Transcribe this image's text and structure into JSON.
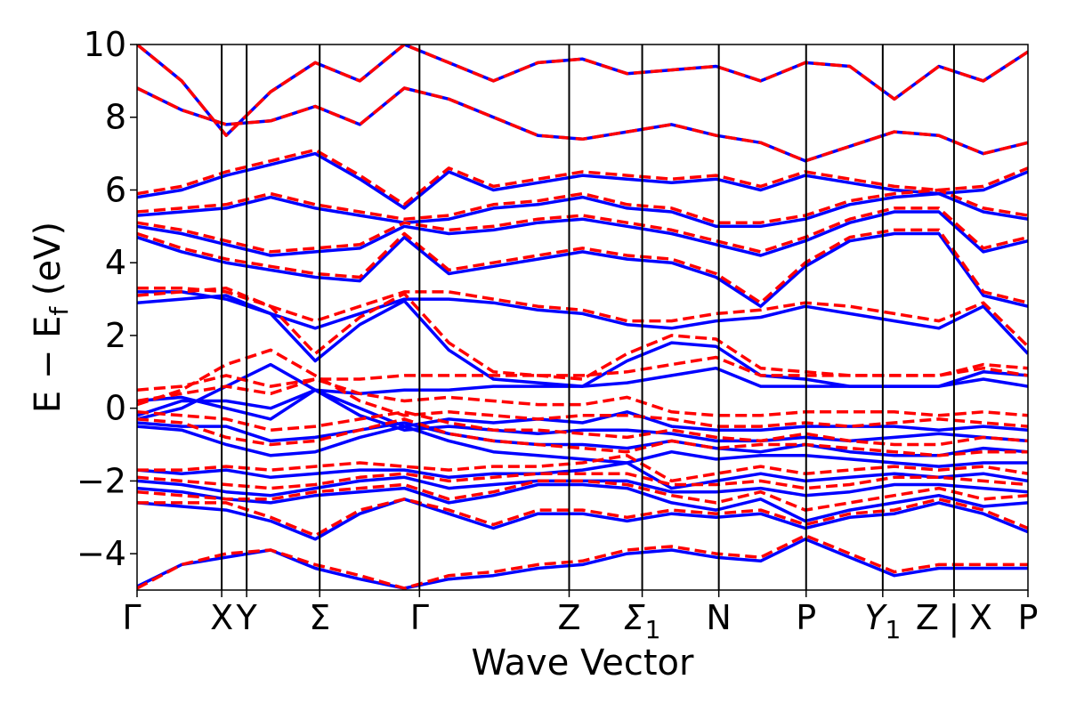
{
  "chart_data": {
    "type": "line",
    "title": "",
    "xlabel": "Wave Vector",
    "ylabel": "E − E_f (eV)",
    "ylabel_parts": {
      "main": "E − E",
      "sub": "f",
      "unit": " (eV)"
    },
    "ylim": [
      -5,
      10
    ],
    "yticks": [
      -4,
      -2,
      0,
      2,
      4,
      6,
      8,
      10
    ],
    "ytick_labels": [
      "−4",
      "−2",
      "0",
      "2",
      "4",
      "6",
      "8",
      "10"
    ],
    "grid": false,
    "legend": "none",
    "high_symmetry_points": [
      {
        "label": "Γ",
        "sub": "",
        "k": 0.0
      },
      {
        "label": "X",
        "sub": "",
        "k": 0.95
      },
      {
        "label": "Y",
        "sub": "",
        "k": 1.23
      },
      {
        "label": "Σ",
        "sub": "",
        "k": 2.05
      },
      {
        "label": "Γ",
        "sub": "",
        "k": 3.17
      },
      {
        "label": "Z",
        "sub": "",
        "k": 4.85
      },
      {
        "label": "Σ",
        "sub": "1",
        "k": 5.67
      },
      {
        "label": "N",
        "sub": "",
        "k": 6.53
      },
      {
        "label": "P",
        "sub": "",
        "k": 7.51
      },
      {
        "label": "Y",
        "sub": "1",
        "k": 8.37
      },
      {
        "label": "Z",
        "sub": "",
        "k": 9.17
      },
      {
        "label": "X",
        "sub": "",
        "k": 9.17
      },
      {
        "label": "P",
        "sub": "",
        "k": 10.0
      }
    ],
    "path_break_label": "|",
    "k_range": [
      0,
      10
    ],
    "series": [
      {
        "style": "solid",
        "color": "#0000ff",
        "bands": [
          [
            -4.9,
            -4.3,
            -4.1,
            -3.9,
            -4.4,
            -4.7,
            -4.95,
            -4.7,
            -4.6,
            -4.4,
            -4.3,
            -4.0,
            -3.9,
            -4.1,
            -4.2,
            -3.6,
            -4.1,
            -4.6,
            -4.4,
            -4.4,
            -4.4
          ],
          [
            -2.6,
            -2.7,
            -2.8,
            -3.1,
            -3.6,
            -2.9,
            -2.5,
            -2.9,
            -3.3,
            -2.9,
            -2.9,
            -3.1,
            -2.9,
            -3.0,
            -2.9,
            -3.3,
            -3.0,
            -2.9,
            -2.6,
            -2.9,
            -3.4
          ],
          [
            -2.2,
            -2.3,
            -2.5,
            -2.6,
            -2.4,
            -2.3,
            -2.2,
            -2.6,
            -2.4,
            -2.1,
            -2.1,
            -2.2,
            -2.6,
            -2.8,
            -2.5,
            -3.1,
            -2.8,
            -2.6,
            -2.4,
            -2.7,
            -2.6
          ],
          [
            -2.0,
            -2.1,
            -2.3,
            -2.4,
            -2.2,
            -2.0,
            -1.9,
            -2.2,
            -2.1,
            -2.0,
            -2.0,
            -2.0,
            -2.3,
            -2.3,
            -2.2,
            -2.4,
            -2.3,
            -2.1,
            -2.1,
            -2.2,
            -2.3
          ],
          [
            -1.7,
            -1.8,
            -1.7,
            -1.9,
            -1.8,
            -1.7,
            -1.7,
            -1.9,
            -1.8,
            -1.8,
            -1.7,
            -1.5,
            -2.2,
            -2.0,
            -1.8,
            -2.0,
            -1.9,
            -1.8,
            -1.9,
            -1.8,
            -2.0
          ],
          [
            -0.5,
            -0.6,
            -1.0,
            -1.3,
            -1.2,
            -0.8,
            -0.5,
            -0.9,
            -1.2,
            -1.3,
            -1.4,
            -1.5,
            -1.2,
            -1.4,
            -1.3,
            -1.3,
            -1.4,
            -1.5,
            -1.6,
            -1.5,
            -1.5
          ],
          [
            -0.4,
            -0.5,
            -0.5,
            -0.9,
            -0.8,
            -0.6,
            -0.4,
            -0.7,
            -0.9,
            -1.0,
            -1.0,
            -1.1,
            -0.9,
            -1.1,
            -1.2,
            -1.0,
            -1.2,
            -1.3,
            -1.3,
            -1.1,
            -1.2
          ],
          [
            -0.3,
            0.0,
            0.6,
            1.2,
            0.5,
            -0.2,
            -0.6,
            -0.5,
            -0.6,
            -0.7,
            -0.6,
            -0.6,
            -0.7,
            -0.9,
            -0.9,
            -0.8,
            -0.9,
            -0.8,
            -0.7,
            -0.8,
            -0.9
          ],
          [
            -0.2,
            0.2,
            0.2,
            0.0,
            0.5,
            0.0,
            -0.5,
            -0.3,
            -0.4,
            -0.3,
            -0.4,
            -0.1,
            -0.5,
            -0.6,
            -0.6,
            -0.5,
            -0.5,
            -0.5,
            -0.6,
            -0.5,
            -0.6
          ],
          [
            0.2,
            0.3,
            0.0,
            -0.3,
            0.5,
            0.4,
            0.5,
            0.5,
            0.6,
            0.6,
            0.6,
            0.7,
            0.9,
            1.1,
            0.6,
            0.6,
            0.6,
            0.6,
            0.6,
            0.8,
            0.6
          ],
          [
            2.9,
            3.0,
            3.1,
            2.6,
            1.3,
            2.3,
            2.95,
            1.6,
            0.8,
            0.7,
            0.6,
            1.3,
            1.8,
            1.7,
            0.9,
            0.8,
            0.6,
            0.6,
            0.6,
            1.0,
            0.9
          ],
          [
            3.2,
            3.2,
            3.0,
            2.6,
            2.2,
            2.6,
            3.0,
            3.0,
            2.9,
            2.7,
            2.6,
            2.3,
            2.2,
            2.4,
            2.5,
            2.8,
            2.6,
            2.4,
            2.2,
            2.8,
            1.5
          ],
          [
            4.7,
            4.3,
            4.0,
            3.8,
            3.6,
            3.5,
            4.7,
            3.7,
            3.9,
            4.1,
            4.3,
            4.1,
            4.0,
            3.6,
            2.8,
            3.9,
            4.6,
            4.8,
            4.8,
            3.1,
            2.8
          ],
          [
            5.0,
            4.8,
            4.5,
            4.2,
            4.3,
            4.4,
            5.0,
            4.8,
            4.9,
            5.1,
            5.2,
            5.0,
            4.8,
            4.5,
            4.2,
            4.6,
            5.1,
            5.4,
            5.4,
            4.3,
            4.6
          ],
          [
            5.3,
            5.4,
            5.5,
            5.8,
            5.5,
            5.3,
            5.1,
            5.2,
            5.5,
            5.6,
            5.8,
            5.5,
            5.4,
            5.0,
            5.0,
            5.2,
            5.6,
            5.8,
            5.9,
            5.4,
            5.2
          ],
          [
            5.8,
            6.0,
            6.4,
            6.7,
            7.0,
            6.3,
            5.5,
            6.5,
            6.0,
            6.2,
            6.4,
            6.3,
            6.2,
            6.3,
            6.0,
            6.4,
            6.2,
            6.0,
            5.9,
            6.0,
            6.5
          ],
          [
            8.8,
            8.2,
            7.8,
            7.9,
            8.3,
            7.8,
            8.8,
            8.5,
            8.0,
            7.5,
            7.4,
            7.6,
            7.8,
            7.5,
            7.3,
            6.8,
            7.2,
            7.6,
            7.5,
            7.0,
            7.3
          ],
          [
            10.0,
            9.0,
            7.5,
            8.7,
            9.5,
            9.0,
            10.0,
            9.5,
            9.0,
            9.5,
            9.6,
            9.2,
            9.3,
            9.4,
            9.0,
            9.5,
            9.4,
            8.5,
            9.4,
            9.0,
            9.8
          ]
        ]
      },
      {
        "style": "dashed",
        "color": "#ff0000",
        "bands": [
          [
            -4.95,
            -4.3,
            -4.0,
            -3.9,
            -4.3,
            -4.6,
            -4.95,
            -4.6,
            -4.5,
            -4.3,
            -4.2,
            -3.9,
            -3.8,
            -4.0,
            -4.1,
            -3.5,
            -4.0,
            -4.5,
            -4.3,
            -4.3,
            -4.3
          ],
          [
            -2.6,
            -2.6,
            -2.6,
            -3.0,
            -3.5,
            -2.8,
            -2.5,
            -2.8,
            -3.2,
            -2.8,
            -2.8,
            -3.0,
            -2.8,
            -2.9,
            -2.8,
            -3.2,
            -2.9,
            -2.8,
            -2.5,
            -2.8,
            -3.3
          ],
          [
            -2.3,
            -2.4,
            -2.5,
            -2.5,
            -2.3,
            -2.2,
            -2.1,
            -2.5,
            -2.3,
            -2.0,
            -2.0,
            -2.1,
            -2.4,
            -2.6,
            -2.3,
            -2.8,
            -2.6,
            -2.4,
            -2.2,
            -2.5,
            -2.4
          ],
          [
            -1.9,
            -2.0,
            -2.1,
            -2.2,
            -2.1,
            -1.9,
            -1.8,
            -2.0,
            -1.9,
            -1.8,
            -1.8,
            -1.8,
            -2.1,
            -2.1,
            -2.0,
            -2.2,
            -2.1,
            -1.9,
            -1.9,
            -2.0,
            -2.1
          ],
          [
            -1.7,
            -1.7,
            -1.6,
            -1.7,
            -1.6,
            -1.5,
            -1.6,
            -1.7,
            -1.6,
            -1.6,
            -1.5,
            -1.3,
            -2.0,
            -1.8,
            -1.6,
            -1.8,
            -1.7,
            -1.6,
            -1.7,
            -1.6,
            -1.8
          ],
          [
            -0.3,
            -0.4,
            -0.8,
            -1.0,
            -0.9,
            -0.6,
            -0.3,
            -0.7,
            -0.9,
            -1.0,
            -1.1,
            -1.2,
            -0.9,
            -1.1,
            -1.0,
            -1.0,
            -1.1,
            -1.2,
            -1.3,
            -1.2,
            -1.2
          ],
          [
            -0.1,
            -0.2,
            -0.3,
            -0.6,
            -0.5,
            -0.3,
            -0.1,
            -0.4,
            -0.6,
            -0.6,
            -0.7,
            -0.8,
            -0.6,
            -0.8,
            -0.9,
            -0.7,
            -0.9,
            -1.0,
            -1.0,
            -0.8,
            -0.9
          ],
          [
            0.1,
            0.5,
            1.2,
            1.6,
            0.9,
            0.2,
            -0.2,
            -0.1,
            -0.2,
            -0.3,
            -0.2,
            -0.2,
            -0.3,
            -0.5,
            -0.5,
            -0.4,
            -0.5,
            -0.4,
            -0.3,
            -0.4,
            -0.5
          ],
          [
            0.2,
            0.4,
            0.6,
            0.4,
            0.8,
            0.4,
            0.2,
            0.3,
            0.2,
            0.1,
            0.1,
            0.3,
            -0.1,
            -0.2,
            -0.2,
            -0.1,
            -0.1,
            -0.1,
            -0.2,
            -0.1,
            -0.2
          ],
          [
            0.5,
            0.6,
            0.9,
            0.6,
            0.8,
            0.8,
            0.9,
            0.9,
            0.9,
            0.9,
            0.9,
            1.0,
            1.2,
            1.4,
            0.9,
            0.9,
            0.9,
            0.9,
            0.9,
            1.1,
            0.9
          ],
          [
            3.1,
            3.2,
            3.3,
            2.8,
            1.5,
            2.5,
            3.15,
            1.8,
            1.0,
            0.9,
            0.8,
            1.5,
            2.0,
            1.9,
            1.1,
            1.0,
            0.9,
            0.9,
            0.9,
            1.2,
            1.1
          ],
          [
            3.3,
            3.3,
            3.2,
            2.8,
            2.4,
            2.8,
            3.2,
            3.2,
            3.0,
            2.8,
            2.7,
            2.4,
            2.4,
            2.6,
            2.7,
            2.9,
            2.8,
            2.6,
            2.4,
            2.9,
            1.7
          ],
          [
            4.8,
            4.4,
            4.1,
            3.9,
            3.7,
            3.6,
            4.8,
            3.8,
            4.0,
            4.2,
            4.4,
            4.2,
            4.1,
            3.7,
            2.9,
            4.0,
            4.7,
            4.9,
            4.9,
            3.2,
            2.9
          ],
          [
            5.1,
            4.9,
            4.6,
            4.3,
            4.4,
            4.5,
            5.1,
            4.9,
            5.0,
            5.2,
            5.3,
            5.1,
            4.9,
            4.6,
            4.3,
            4.7,
            5.2,
            5.5,
            5.5,
            4.4,
            4.7
          ],
          [
            5.4,
            5.5,
            5.6,
            5.9,
            5.6,
            5.4,
            5.2,
            5.3,
            5.6,
            5.7,
            5.9,
            5.6,
            5.5,
            5.1,
            5.1,
            5.3,
            5.7,
            5.9,
            6.0,
            5.5,
            5.3
          ],
          [
            5.9,
            6.1,
            6.5,
            6.8,
            7.1,
            6.4,
            5.6,
            6.6,
            6.1,
            6.3,
            6.5,
            6.4,
            6.3,
            6.4,
            6.1,
            6.5,
            6.3,
            6.1,
            6.0,
            6.1,
            6.6
          ],
          [
            8.8,
            8.2,
            7.8,
            7.9,
            8.3,
            7.8,
            8.8,
            8.5,
            8.0,
            7.5,
            7.4,
            7.6,
            7.8,
            7.5,
            7.3,
            6.8,
            7.2,
            7.6,
            7.5,
            7.0,
            7.3
          ],
          [
            10.0,
            9.0,
            7.5,
            8.7,
            9.5,
            9.0,
            10.0,
            9.5,
            9.0,
            9.5,
            9.6,
            9.2,
            9.3,
            9.4,
            9.0,
            9.5,
            9.4,
            8.5,
            9.4,
            9.0,
            9.8
          ]
        ]
      }
    ]
  }
}
